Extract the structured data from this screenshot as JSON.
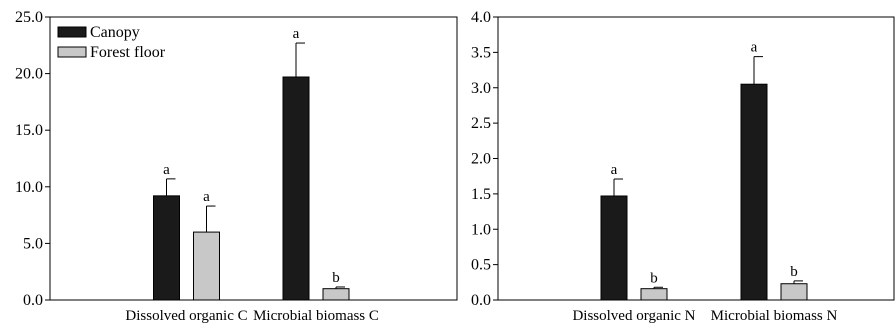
{
  "chart_data": [
    {
      "type": "bar",
      "title": "",
      "xlabel": "",
      "ylabel": "",
      "ylim": [
        0,
        25
      ],
      "yticks": [
        "0.0",
        "5.0",
        "10.0",
        "15.0",
        "20.0",
        "25.0"
      ],
      "categories": [
        "Dissolved organic C",
        "Microbial biomass C"
      ],
      "legend": {
        "placement": "top-left",
        "entries": [
          "Canopy",
          "Forest floor"
        ]
      },
      "series": [
        {
          "name": "Canopy",
          "color": "#1a1a1a",
          "values": [
            9.2,
            19.7
          ],
          "errors": [
            1.5,
            3.0
          ],
          "letters": [
            "a",
            "a"
          ]
        },
        {
          "name": "Forest floor",
          "color": "#c8c8c8",
          "values": [
            6.0,
            1.0
          ],
          "errors": [
            2.3,
            0.15
          ],
          "letters": [
            "a",
            "b"
          ]
        }
      ],
      "grid": false
    },
    {
      "type": "bar",
      "title": "",
      "xlabel": "",
      "ylabel": "",
      "ylim": [
        0,
        4
      ],
      "yticks": [
        "0.0",
        "0.5",
        "1.0",
        "1.5",
        "2.0",
        "2.5",
        "3.0",
        "3.5",
        "4.0"
      ],
      "categories": [
        "Dissolved organic N",
        "Microbial biomass N"
      ],
      "series": [
        {
          "name": "Canopy",
          "color": "#1a1a1a",
          "values": [
            1.47,
            3.05
          ],
          "errors": [
            0.24,
            0.39
          ],
          "letters": [
            "a",
            "a"
          ]
        },
        {
          "name": "Forest floor",
          "color": "#c8c8c8",
          "values": [
            0.16,
            0.23
          ],
          "errors": [
            0.02,
            0.04
          ],
          "letters": [
            "b",
            "b"
          ]
        }
      ],
      "grid": false
    }
  ]
}
